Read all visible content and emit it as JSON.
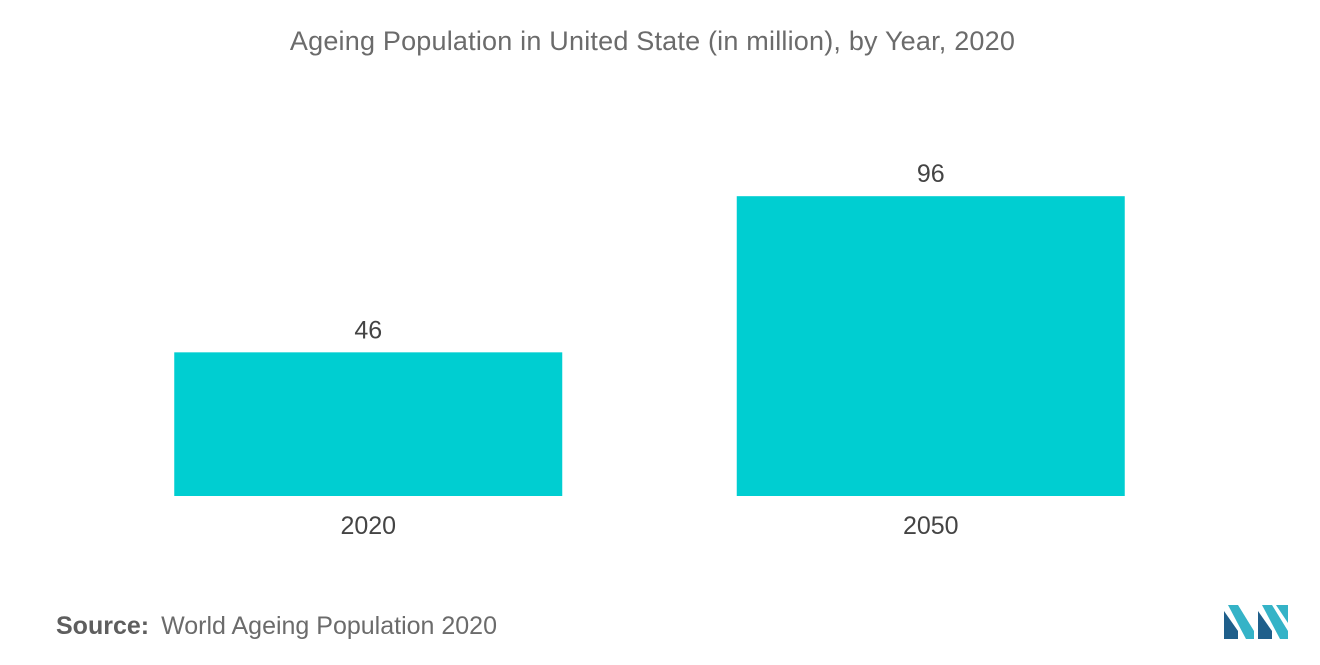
{
  "chart_data": {
    "type": "bar",
    "title": "Ageing Population in United State (in million), by Year,  2020",
    "categories": [
      "2020",
      "2050"
    ],
    "values": [
      46,
      96
    ],
    "data_labels": [
      "46",
      "96"
    ],
    "xlabel": "",
    "ylabel": "",
    "ylim": [
      0,
      100
    ],
    "grid": false,
    "legend": "none",
    "bar_color": "#00ced1"
  },
  "source": {
    "label": "Source:",
    "text": "World Ageing Population 2020"
  },
  "logo": {
    "icon": "mordor-intelligence-logo-icon",
    "colors": [
      "#1f5f8b",
      "#35b3c7"
    ]
  }
}
